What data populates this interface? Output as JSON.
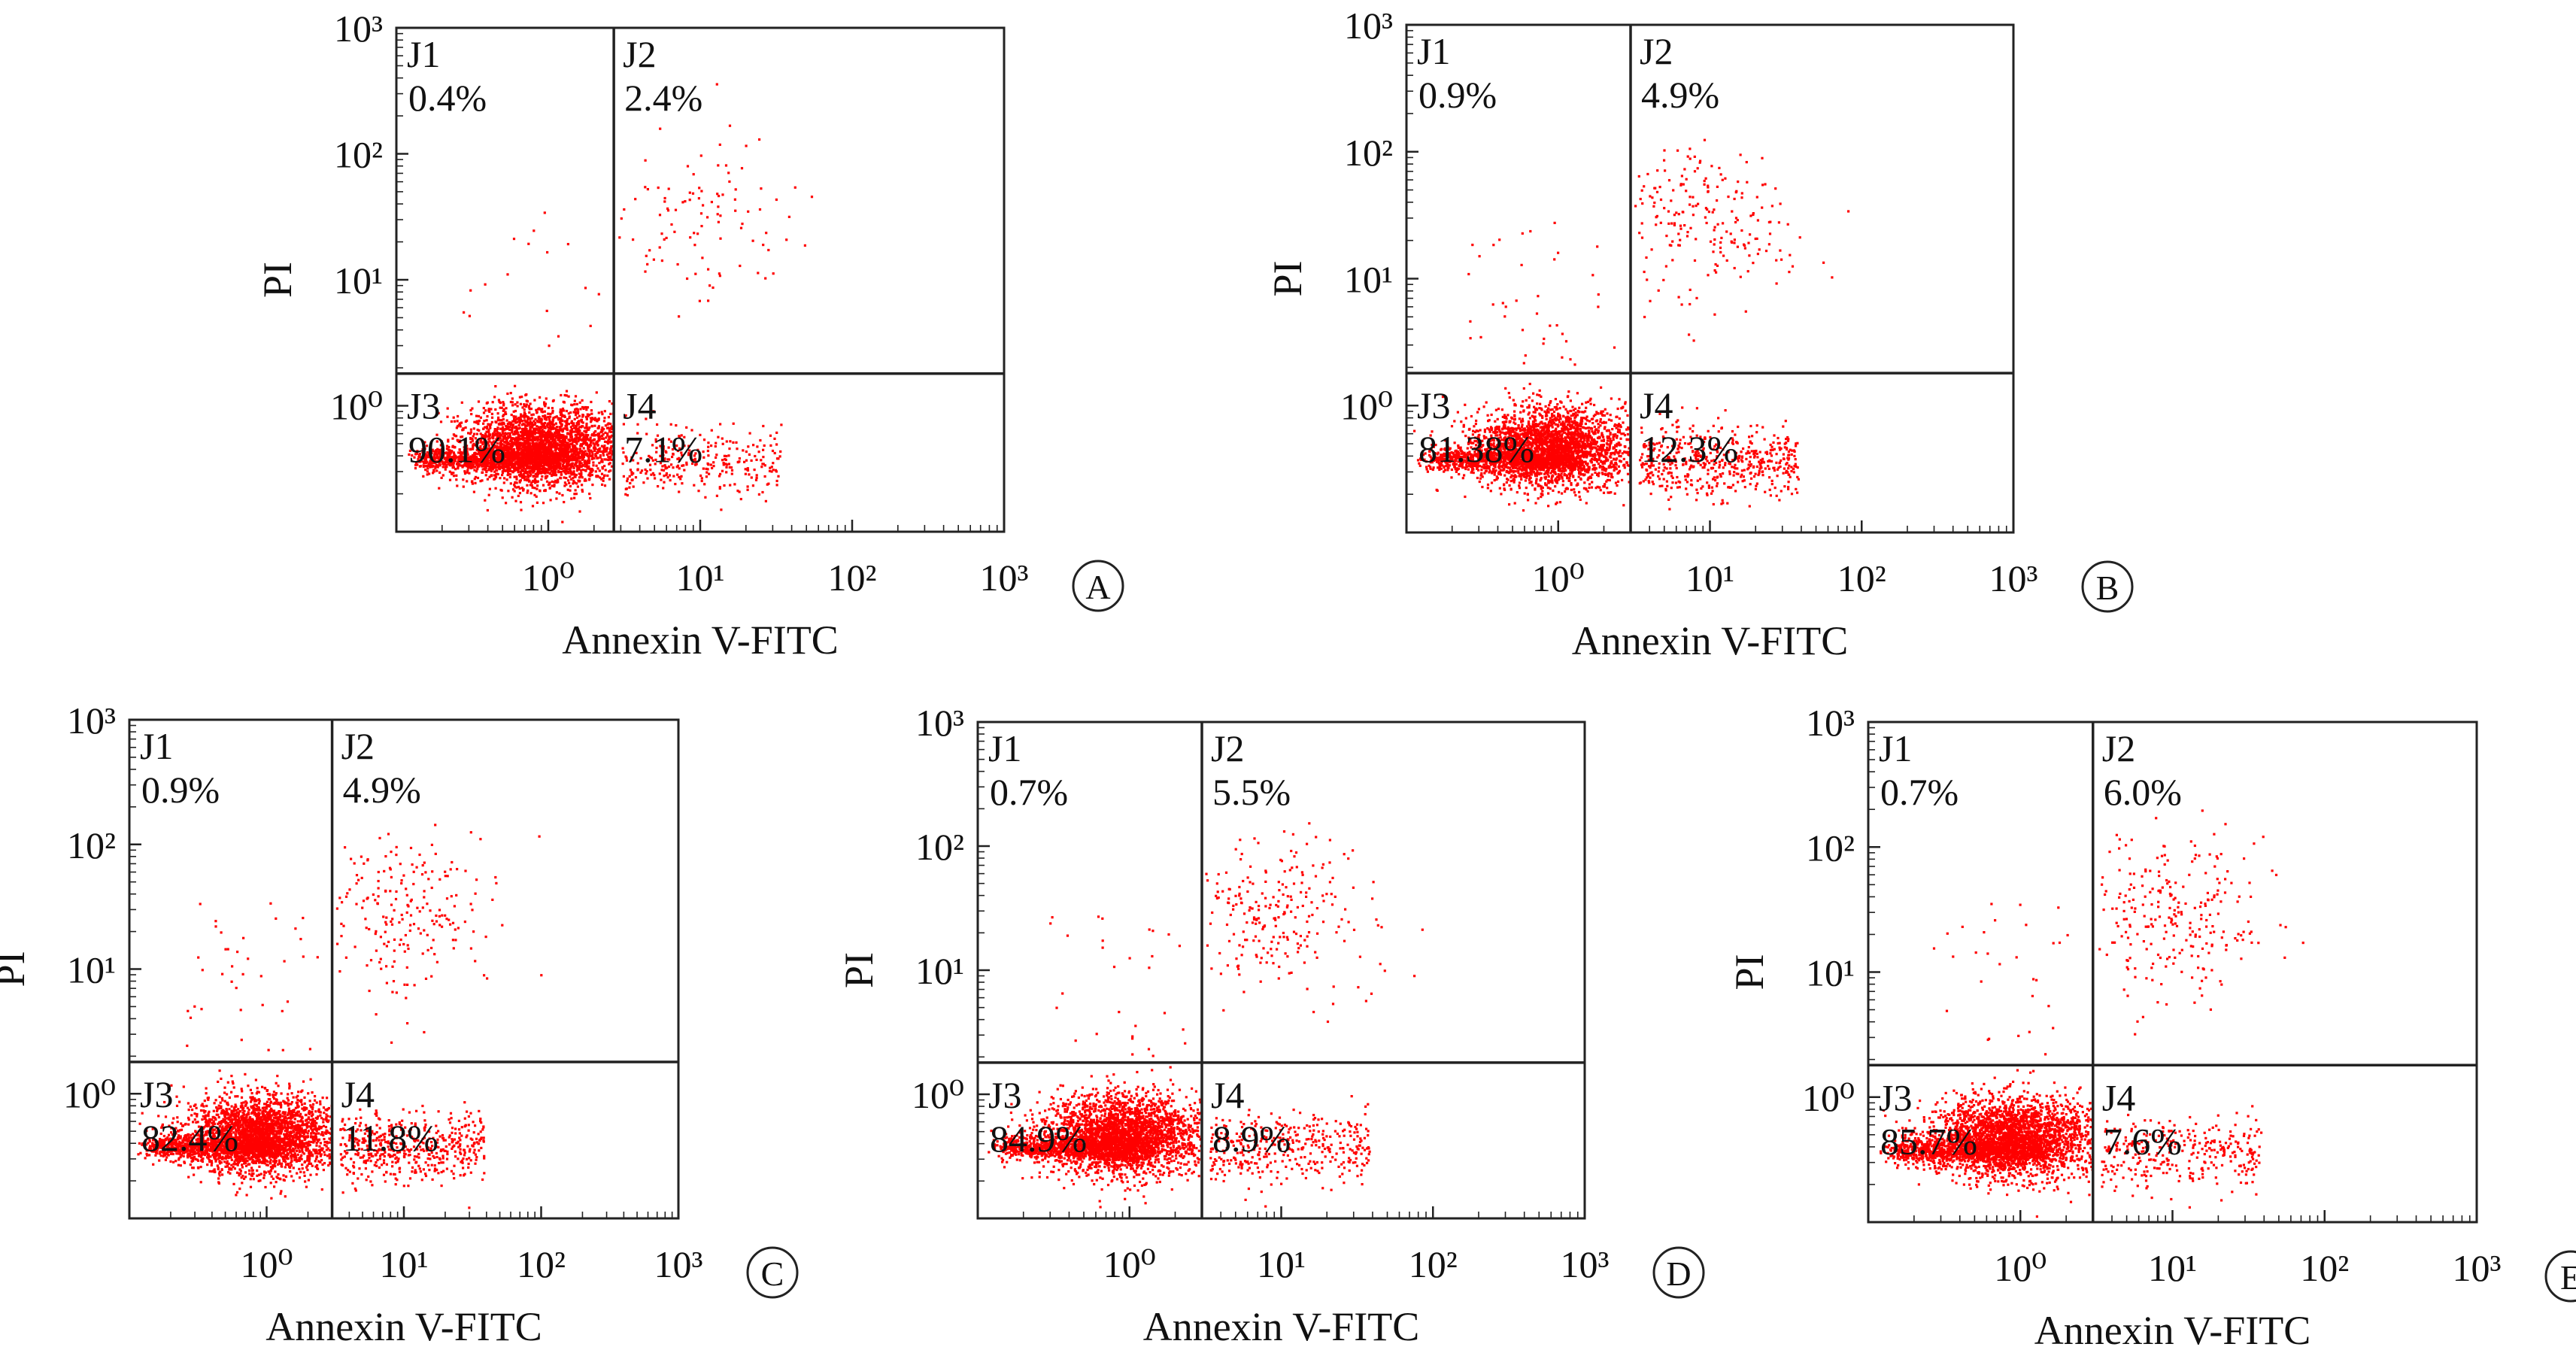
{
  "figure": {
    "panels": [
      {
        "letter": "A",
        "xlabel": "Annexin V-FITC",
        "ylabel": "PI",
        "x_ticks": [
          "10⁰",
          "10¹",
          "10²",
          "10³"
        ],
        "y_ticks": [
          "10³",
          "10²",
          "10¹",
          "10⁰"
        ],
        "quadrants": [
          {
            "id": "J1",
            "value": "0.4%"
          },
          {
            "id": "J2",
            "value": "2.4%"
          },
          {
            "id": "J3",
            "value": "90.1%"
          },
          {
            "id": "J4",
            "value": "7.1%"
          }
        ]
      },
      {
        "letter": "B",
        "xlabel": "Annexin V-FITC",
        "ylabel": "PI",
        "x_ticks": [
          "10⁰",
          "10¹",
          "10²",
          "10³"
        ],
        "y_ticks": [
          "10³",
          "10²",
          "10¹",
          "10⁰"
        ],
        "quadrants": [
          {
            "id": "J1",
            "value": "0.9%"
          },
          {
            "id": "J2",
            "value": "4.9%"
          },
          {
            "id": "J3",
            "value": "81.38%"
          },
          {
            "id": "J4",
            "value": "12.3%"
          }
        ]
      },
      {
        "letter": "C",
        "xlabel": "Annexin V-FITC",
        "ylabel": "PI",
        "x_ticks": [
          "10⁰",
          "10¹",
          "10²",
          "10³"
        ],
        "y_ticks": [
          "10³",
          "10²",
          "10¹",
          "10⁰"
        ],
        "quadrants": [
          {
            "id": "J1",
            "value": "0.9%"
          },
          {
            "id": "J2",
            "value": "4.9%"
          },
          {
            "id": "J3",
            "value": "82.4%"
          },
          {
            "id": "J4",
            "value": "11.8%"
          }
        ]
      },
      {
        "letter": "D",
        "xlabel": "Annexin V-FITC",
        "ylabel": "PI",
        "x_ticks": [
          "10⁰",
          "10¹",
          "10²",
          "10³"
        ],
        "y_ticks": [
          "10³",
          "10²",
          "10¹",
          "10⁰"
        ],
        "quadrants": [
          {
            "id": "J1",
            "value": "0.7%"
          },
          {
            "id": "J2",
            "value": "5.5%"
          },
          {
            "id": "J3",
            "value": "84.9%"
          },
          {
            "id": "J4",
            "value": "8.9%"
          }
        ]
      },
      {
        "letter": "E",
        "xlabel": "Annexin V-FITC",
        "ylabel": "PI",
        "x_ticks": [
          "10⁰",
          "10¹",
          "10²",
          "10³"
        ],
        "y_ticks": [
          "10³",
          "10²",
          "10¹",
          "10⁰"
        ],
        "quadrants": [
          {
            "id": "J1",
            "value": "0.7%"
          },
          {
            "id": "J2",
            "value": "6.0%"
          },
          {
            "id": "J3",
            "value": "85.7%"
          },
          {
            "id": "J4",
            "value": "7.6%"
          }
        ]
      }
    ]
  },
  "chart_data": [
    {
      "type": "scatter",
      "panel": "A",
      "xlabel": "Annexin V-FITC",
      "ylabel": "PI",
      "xscale": "log",
      "yscale": "log",
      "xlim": [
        0.1,
        1000
      ],
      "ylim": [
        0.1,
        1000
      ],
      "dot_color": "#ff0000",
      "gate": {
        "x": 2.7,
        "y": 1.8
      },
      "quadrant_percent": {
        "J1": 0.4,
        "J2": 2.4,
        "J3": 90.1,
        "J4": 7.1
      }
    },
    {
      "type": "scatter",
      "panel": "B",
      "xlabel": "Annexin V-FITC",
      "ylabel": "PI",
      "xscale": "log",
      "yscale": "log",
      "xlim": [
        0.1,
        1000
      ],
      "ylim": [
        0.1,
        1000
      ],
      "dot_color": "#ff0000",
      "gate": {
        "x": 3.0,
        "y": 1.8
      },
      "quadrant_percent": {
        "J1": 0.9,
        "J2": 4.9,
        "J3": 81.38,
        "J4": 12.3
      }
    },
    {
      "type": "scatter",
      "panel": "C",
      "xlabel": "Annexin V-FITC",
      "ylabel": "PI",
      "xscale": "log",
      "yscale": "log",
      "xlim": [
        0.1,
        1000
      ],
      "ylim": [
        0.1,
        1000
      ],
      "dot_color": "#ff0000",
      "gate": {
        "x": 3.0,
        "y": 1.8
      },
      "quadrant_percent": {
        "J1": 0.9,
        "J2": 4.9,
        "J3": 82.4,
        "J4": 11.8
      }
    },
    {
      "type": "scatter",
      "panel": "D",
      "xlabel": "Annexin V-FITC",
      "ylabel": "PI",
      "xscale": "log",
      "yscale": "log",
      "xlim": [
        0.1,
        1000
      ],
      "ylim": [
        0.1,
        1000
      ],
      "dot_color": "#ff0000",
      "gate": {
        "x": 3.0,
        "y": 1.8
      },
      "quadrant_percent": {
        "J1": 0.7,
        "J2": 5.5,
        "J3": 84.9,
        "J4": 8.9
      }
    },
    {
      "type": "scatter",
      "panel": "E",
      "xlabel": "Annexin V-FITC",
      "ylabel": "PI",
      "xscale": "log",
      "yscale": "log",
      "xlim": [
        0.1,
        1000
      ],
      "ylim": [
        0.1,
        1000
      ],
      "dot_color": "#ff0000",
      "gate": {
        "x": 3.0,
        "y": 1.8
      },
      "quadrant_percent": {
        "J1": 0.7,
        "J2": 6.0,
        "J3": 85.7,
        "J4": 7.6
      }
    }
  ]
}
